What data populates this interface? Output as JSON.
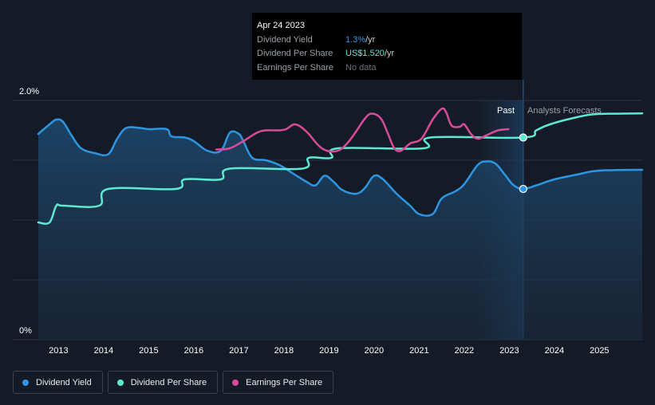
{
  "tooltip": {
    "date": "Apr 24 2023",
    "rows": [
      {
        "label": "Dividend Yield",
        "value": "1.3%",
        "unit": " /yr"
      },
      {
        "label": "Dividend Per Share",
        "value": "US$1.520",
        "unit": " /yr"
      },
      {
        "label": "Earnings Per Share",
        "value": "No data",
        "unit": ""
      }
    ]
  },
  "regions": {
    "past": "Past",
    "forecast": "Analysts Forecasts"
  },
  "legend": [
    {
      "label": "Dividend Yield",
      "color": "#2d95e2"
    },
    {
      "label": "Dividend Per Share",
      "color": "#5de9d4"
    },
    {
      "label": "Earnings Per Share",
      "color": "#d84a9a"
    }
  ],
  "chart_data": {
    "type": "line",
    "xlim": [
      2012.55,
      2025.95
    ],
    "x_ticks": [
      "2013",
      "2014",
      "2015",
      "2016",
      "2017",
      "2018",
      "2019",
      "2020",
      "2021",
      "2022",
      "2023",
      "2024",
      "2025"
    ],
    "y_ticks": [
      "2.0%",
      "0%"
    ],
    "ylim": [
      0,
      2.0
    ],
    "past_region": [
      2022.3,
      2023.31
    ],
    "forecast_start": 2023.31,
    "marker_x": 2023.31,
    "series": [
      {
        "name": "Dividend Yield",
        "color": "#2d95e2",
        "area": true,
        "points": [
          [
            2012.55,
            1.72
          ],
          [
            2012.8,
            1.8
          ],
          [
            2012.95,
            1.84
          ],
          [
            2013.1,
            1.82
          ],
          [
            2013.3,
            1.7
          ],
          [
            2013.5,
            1.6
          ],
          [
            2013.8,
            1.56
          ],
          [
            2014.1,
            1.55
          ],
          [
            2014.3,
            1.68
          ],
          [
            2014.5,
            1.77
          ],
          [
            2014.8,
            1.77
          ],
          [
            2015.0,
            1.76
          ],
          [
            2015.4,
            1.76
          ],
          [
            2015.5,
            1.7
          ],
          [
            2015.8,
            1.69
          ],
          [
            2016.0,
            1.66
          ],
          [
            2016.3,
            1.58
          ],
          [
            2016.6,
            1.58
          ],
          [
            2016.8,
            1.73
          ],
          [
            2017.0,
            1.72
          ],
          [
            2017.1,
            1.66
          ],
          [
            2017.3,
            1.52
          ],
          [
            2017.6,
            1.5
          ],
          [
            2017.9,
            1.46
          ],
          [
            2018.2,
            1.39
          ],
          [
            2018.5,
            1.32
          ],
          [
            2018.7,
            1.29
          ],
          [
            2018.9,
            1.37
          ],
          [
            2019.1,
            1.32
          ],
          [
            2019.3,
            1.25
          ],
          [
            2019.6,
            1.22
          ],
          [
            2019.8,
            1.27
          ],
          [
            2020.0,
            1.37
          ],
          [
            2020.2,
            1.34
          ],
          [
            2020.5,
            1.22
          ],
          [
            2020.8,
            1.12
          ],
          [
            2021.0,
            1.05
          ],
          [
            2021.3,
            1.05
          ],
          [
            2021.5,
            1.18
          ],
          [
            2021.8,
            1.24
          ],
          [
            2022.0,
            1.3
          ],
          [
            2022.3,
            1.46
          ],
          [
            2022.5,
            1.49
          ],
          [
            2022.7,
            1.47
          ],
          [
            2022.9,
            1.38
          ],
          [
            2023.1,
            1.29
          ],
          [
            2023.31,
            1.26
          ],
          [
            2023.6,
            1.29
          ],
          [
            2024.0,
            1.34
          ],
          [
            2024.5,
            1.38
          ],
          [
            2024.9,
            1.41
          ],
          [
            2025.4,
            1.418
          ],
          [
            2025.95,
            1.42
          ]
        ]
      },
      {
        "name": "Dividend Per Share",
        "color": "#5de9d4",
        "area": false,
        "points": [
          [
            2012.55,
            0.98
          ],
          [
            2012.8,
            0.98
          ],
          [
            2012.95,
            1.12
          ],
          [
            2013.1,
            1.12
          ],
          [
            2013.9,
            1.12
          ],
          [
            2014.1,
            1.26
          ],
          [
            2015.6,
            1.26
          ],
          [
            2015.8,
            1.34
          ],
          [
            2016.6,
            1.34
          ],
          [
            2016.8,
            1.43
          ],
          [
            2018.4,
            1.43
          ],
          [
            2018.55,
            1.52
          ],
          [
            2019.05,
            1.52
          ],
          [
            2019.2,
            1.6
          ],
          [
            2021.1,
            1.6
          ],
          [
            2021.25,
            1.69
          ],
          [
            2023.31,
            1.69
          ],
          [
            2023.6,
            1.75
          ],
          [
            2023.9,
            1.8
          ],
          [
            2024.5,
            1.86
          ],
          [
            2024.9,
            1.885
          ],
          [
            2025.5,
            1.89
          ],
          [
            2025.95,
            1.892
          ]
        ]
      },
      {
        "name": "Earnings Per Share",
        "color": "#d84a9a",
        "area": false,
        "points": [
          [
            2016.5,
            1.59
          ],
          [
            2016.8,
            1.6
          ],
          [
            2017.1,
            1.66
          ],
          [
            2017.4,
            1.73
          ],
          [
            2017.6,
            1.75
          ],
          [
            2017.9,
            1.75
          ],
          [
            2018.05,
            1.76
          ],
          [
            2018.25,
            1.8
          ],
          [
            2018.5,
            1.74
          ],
          [
            2018.75,
            1.63
          ],
          [
            2018.95,
            1.58
          ],
          [
            2019.2,
            1.58
          ],
          [
            2019.4,
            1.64
          ],
          [
            2019.6,
            1.74
          ],
          [
            2019.8,
            1.85
          ],
          [
            2019.95,
            1.89
          ],
          [
            2020.15,
            1.85
          ],
          [
            2020.3,
            1.73
          ],
          [
            2020.45,
            1.6
          ],
          [
            2020.6,
            1.58
          ],
          [
            2020.8,
            1.64
          ],
          [
            2021.05,
            1.68
          ],
          [
            2021.3,
            1.84
          ],
          [
            2021.5,
            1.93
          ],
          [
            2021.6,
            1.9
          ],
          [
            2021.72,
            1.79
          ],
          [
            2021.9,
            1.78
          ],
          [
            2022.0,
            1.8
          ],
          [
            2022.15,
            1.72
          ],
          [
            2022.3,
            1.68
          ],
          [
            2022.5,
            1.71
          ],
          [
            2022.75,
            1.75
          ],
          [
            2022.98,
            1.76
          ]
        ]
      }
    ]
  }
}
